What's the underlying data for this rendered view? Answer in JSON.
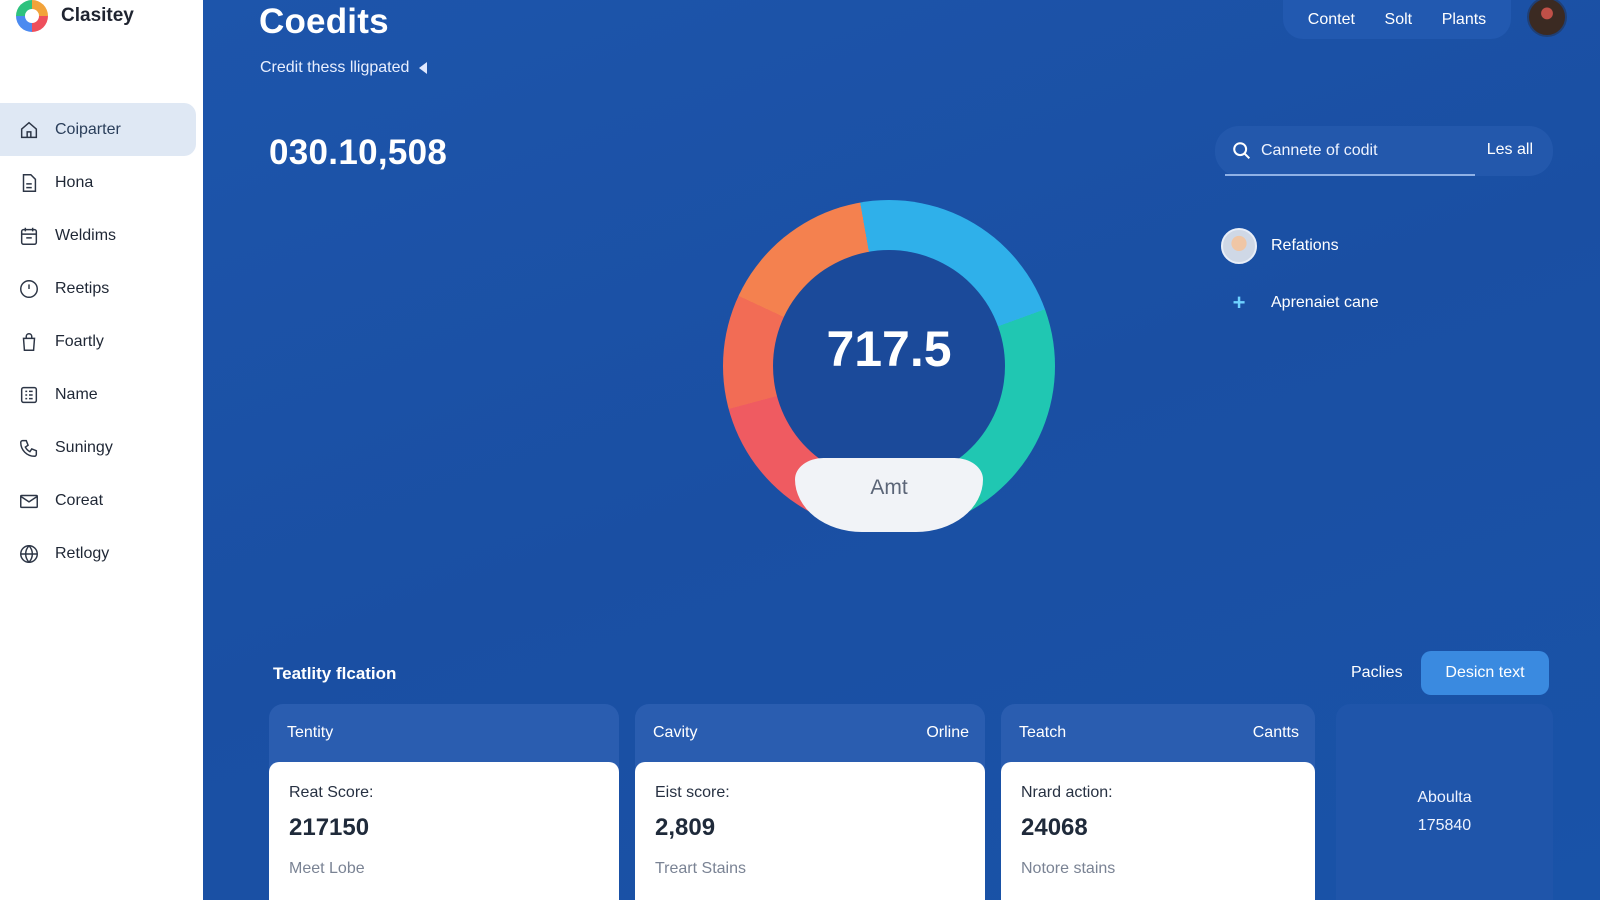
{
  "app": {
    "name": "Clasitey"
  },
  "sidebar": {
    "items": [
      {
        "label": "Coiparter",
        "icon": "home-icon"
      },
      {
        "label": "Hona",
        "icon": "document-icon"
      },
      {
        "label": "Weldims",
        "icon": "calendar-icon"
      },
      {
        "label": "Reetips",
        "icon": "clock-icon"
      },
      {
        "label": "Foartly",
        "icon": "bag-icon"
      },
      {
        "label": "Name",
        "icon": "grid-list-icon"
      },
      {
        "label": "Suningy",
        "icon": "phone-icon"
      },
      {
        "label": "Coreat",
        "icon": "mail-icon"
      },
      {
        "label": "Retlogy",
        "icon": "globe-icon"
      }
    ]
  },
  "header": {
    "title": "Coedits",
    "subtitle": "Credit thess lligpated",
    "nav": [
      "Contet",
      "Solt",
      "Plants"
    ]
  },
  "summary": {
    "big_number": "030.10,508"
  },
  "gauge": {
    "value": "717.5",
    "label": "Amt"
  },
  "search": {
    "placeholder": "Cannete of codit",
    "action": "Les all"
  },
  "side_links": [
    {
      "label": "Refations"
    },
    {
      "label": "Aprenaiet cane"
    }
  ],
  "section": {
    "title": "Teatlity flcation",
    "link": "Paclies",
    "button": "Desicn text"
  },
  "cards": [
    {
      "title": "Tentity",
      "meta": "",
      "label": "Reat Score:",
      "value": "217150",
      "foot": "Meet Lobe"
    },
    {
      "title": "Cavity",
      "meta": "Orline",
      "label": "Eist score:",
      "value": "2,809",
      "foot": "Treart Stains"
    },
    {
      "title": "Teatch",
      "meta": "Cantts",
      "label": "Nrard action:",
      "value": "24068",
      "foot": "Notore stains"
    }
  ],
  "aside": {
    "line1": "Aboulta",
    "line2": "175840"
  }
}
